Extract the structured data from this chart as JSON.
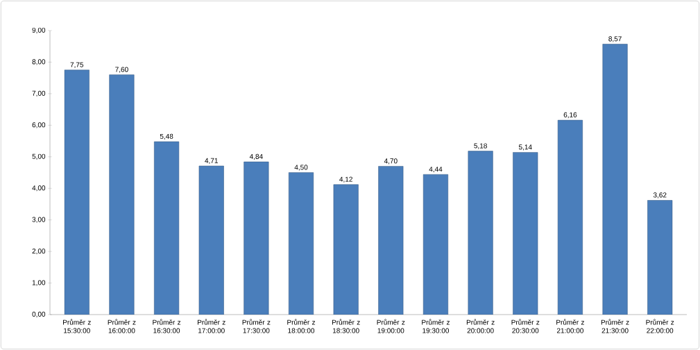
{
  "chart_data": {
    "type": "bar",
    "categories": [
      "Průměr z 15:30:00",
      "Průměr z 16:00:00",
      "Průměr z 16:30:00",
      "Průměr z 17:00:00",
      "Průměr z 17:30:00",
      "Průměr z 18:00:00",
      "Průměr z 18:30:00",
      "Průměr z 19:00:00",
      "Průměr z 19:30:00",
      "Průměr z 20:00:00",
      "Průměr z 20:30:00",
      "Průměr z 21:00:00",
      "Průměr z 21:30:00",
      "Průměr z 22:00:00"
    ],
    "values": [
      7.75,
      7.6,
      5.48,
      4.71,
      4.84,
      4.5,
      4.12,
      4.7,
      4.44,
      5.18,
      5.14,
      6.16,
      8.57,
      3.62
    ],
    "value_labels": [
      "7,75",
      "7,60",
      "5,48",
      "4,71",
      "4,84",
      "4,50",
      "4,12",
      "4,70",
      "4,44",
      "5,18",
      "5,14",
      "6,16",
      "8,57",
      "3,62"
    ],
    "color": "#4a7ebb",
    "ylim": [
      0,
      9
    ],
    "yticks": [
      {
        "value": 0,
        "label": "0,00"
      },
      {
        "value": 1,
        "label": "1,00"
      },
      {
        "value": 2,
        "label": "2,00"
      },
      {
        "value": 3,
        "label": "3,00"
      },
      {
        "value": 4,
        "label": "4,00"
      },
      {
        "value": 5,
        "label": "5,00"
      },
      {
        "value": 6,
        "label": "6,00"
      },
      {
        "value": 7,
        "label": "7,00"
      },
      {
        "value": 8,
        "label": "8,00"
      },
      {
        "value": 9,
        "label": "9,00"
      }
    ],
    "grid": false
  }
}
